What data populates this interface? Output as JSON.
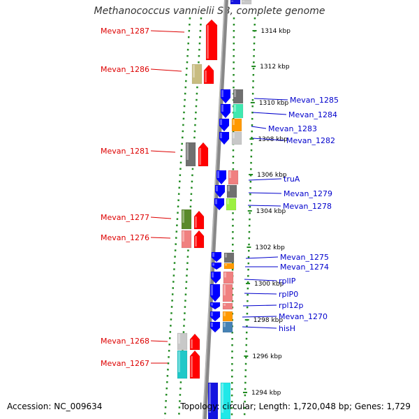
{
  "title": "Methanococcus vannielii SB, complete genome",
  "footer": {
    "accession": "Accession: NC_009634",
    "topology": "Topology: circular; Length: 1,720,048 bp; Genes: 1,729"
  },
  "colors": {
    "left_label": "#dd0000",
    "right_label": "#0000cc",
    "backbone": "#888888",
    "dots": "#228b22"
  },
  "kbp_marks": [
    "1314 kbp",
    "1312 kbp",
    "1310 kbp",
    "1308 kbp",
    "1306 kbp",
    "1304 kbp",
    "1302 kbp",
    "1300 kbp",
    "1298 kbp",
    "1296 kbp",
    "1294 kbp"
  ],
  "left_genes": [
    "Mevan_1287",
    "Mevan_1286",
    "Mevan_1281",
    "Mevan_1277",
    "Mevan_1276",
    "Mevan_1268",
    "Mevan_1267"
  ],
  "right_genes": [
    "Mevan_1285",
    "Mevan_1284",
    "Mevan_1283",
    "Mevan_1282",
    "truA",
    "Mevan_1279",
    "Mevan_1278",
    "Mevan_1275",
    "Mevan_1274",
    "rplIP",
    "rplP0",
    "rpl12p",
    "Mevan_1270",
    "hisH"
  ]
}
